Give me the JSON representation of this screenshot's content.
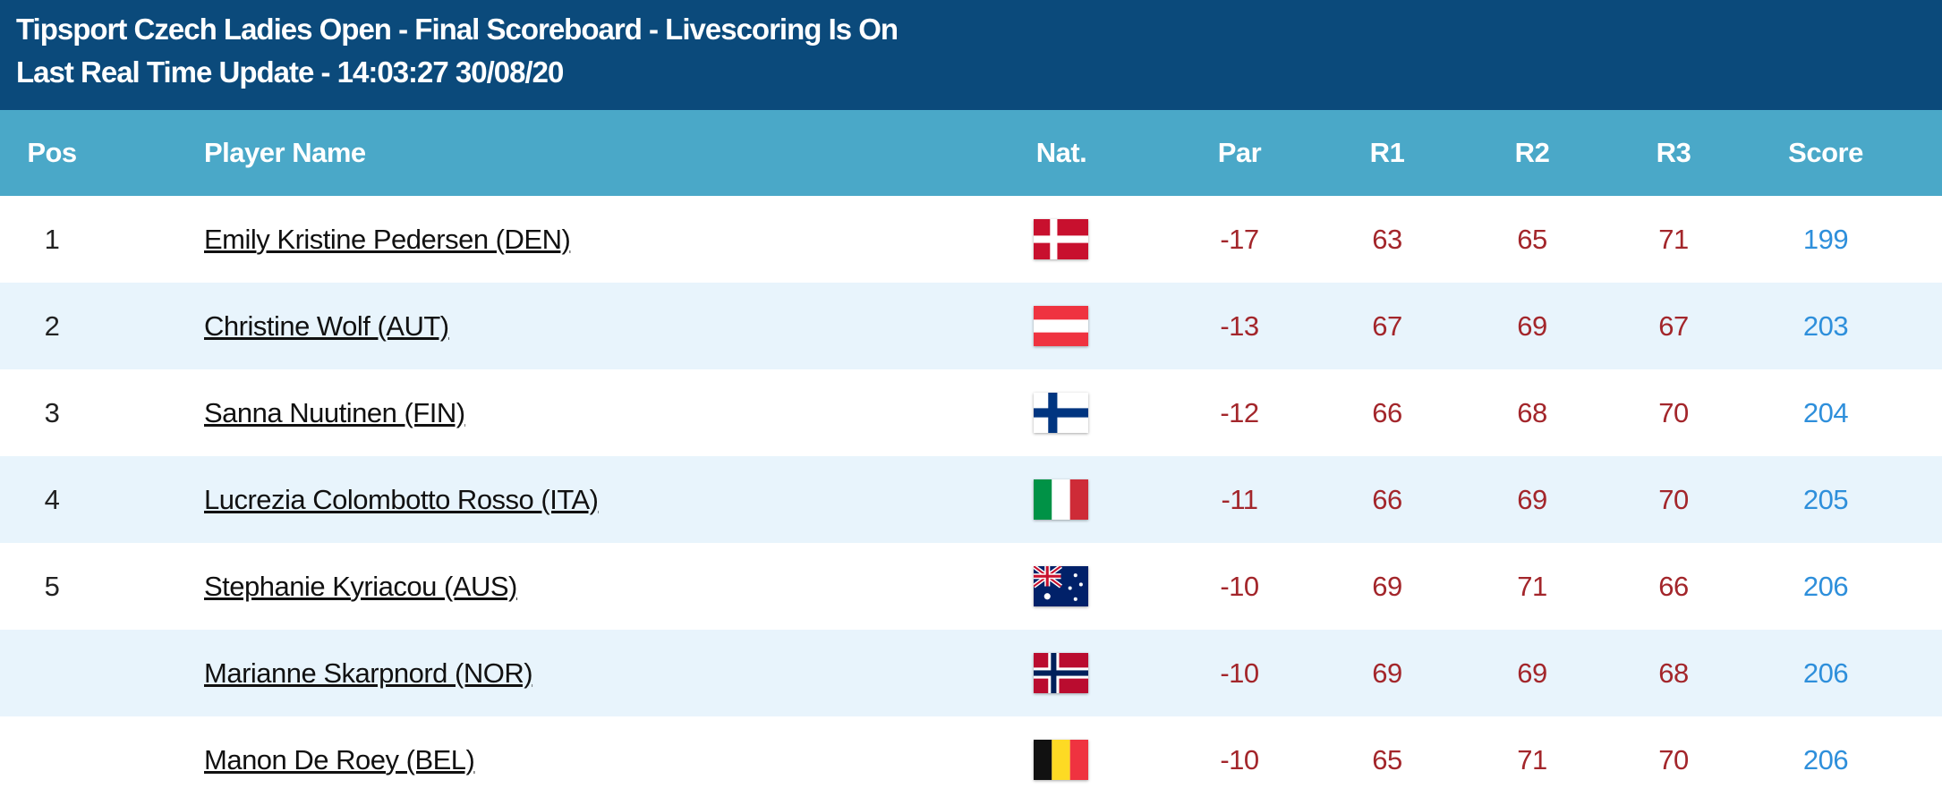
{
  "header": {
    "title": "Tipsport Czech Ladies Open - Final Scoreboard - Livescoring Is On",
    "subtitle": "Last Real Time Update - 14:03:27 30/08/20"
  },
  "table": {
    "columns": [
      "Pos",
      "Player Name",
      "Nat.",
      "Par",
      "R1",
      "R2",
      "R3",
      "Score"
    ],
    "rows": [
      {
        "pos": 1,
        "player": "Emily Kristine Pedersen (DEN)",
        "par": -17,
        "r1": 63,
        "r2": 65,
        "r3": 71,
        "score": 199
      },
      {
        "pos": 2,
        "player": "Christine Wolf (AUT)",
        "par": -13,
        "r1": 67,
        "r2": 69,
        "r3": 67,
        "score": 203
      },
      {
        "pos": 3,
        "player": "Sanna Nuutinen (FIN)",
        "par": -12,
        "r1": 66,
        "r2": 68,
        "r3": 70,
        "score": 204
      },
      {
        "pos": 4,
        "player": "Lucrezia Colombotto Rosso (ITA)",
        "par": -11,
        "r1": 66,
        "r2": 69,
        "r3": 70,
        "score": 205
      },
      {
        "pos": 5,
        "player": "Stephanie Kyriacou (AUS)",
        "par": -10,
        "r1": 69,
        "r2": 71,
        "r3": 66,
        "score": 206
      },
      {
        "player": "Marianne Skarpnord (NOR)",
        "par": -10,
        "r1": 69,
        "r2": 69,
        "r3": 68,
        "score": 206
      },
      {
        "player": "Manon De Roey (BEL)",
        "par": -10,
        "r1": 65,
        "r2": 71,
        "r3": 70,
        "score": 206
      }
    ]
  }
}
